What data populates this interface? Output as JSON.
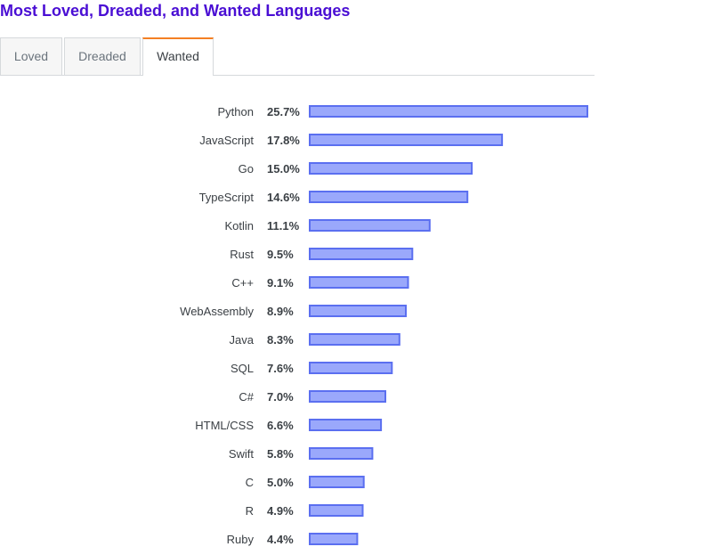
{
  "title": "Most Loved, Dreaded, and Wanted Languages",
  "tabs": [
    {
      "label": "Loved",
      "active": false
    },
    {
      "label": "Dreaded",
      "active": false
    },
    {
      "label": "Wanted",
      "active": true
    }
  ],
  "colors": {
    "title": "#4a0ed4",
    "bar_fill": "#9aa8fb",
    "bar_stroke": "#5b6ff0",
    "tab_accent": "#f48024"
  },
  "chart_data": {
    "type": "bar",
    "orientation": "horizontal",
    "value_suffix": "%",
    "xlim": [
      0,
      25.7
    ],
    "categories": [
      "Python",
      "JavaScript",
      "Go",
      "TypeScript",
      "Kotlin",
      "Rust",
      "C++",
      "WebAssembly",
      "Java",
      "SQL",
      "C#",
      "HTML/CSS",
      "Swift",
      "C",
      "R",
      "Ruby"
    ],
    "values": [
      25.7,
      17.8,
      15.0,
      14.6,
      11.1,
      9.5,
      9.1,
      8.9,
      8.3,
      7.6,
      7.0,
      6.6,
      5.8,
      5.0,
      4.9,
      4.4
    ],
    "value_labels": [
      "25.7%",
      "17.8%",
      "15.0%",
      "14.6%",
      "11.1%",
      "9.5%",
      "9.1%",
      "8.9%",
      "8.3%",
      "7.6%",
      "7.0%",
      "6.6%",
      "5.8%",
      "5.0%",
      "4.9%",
      "4.4%"
    ]
  }
}
